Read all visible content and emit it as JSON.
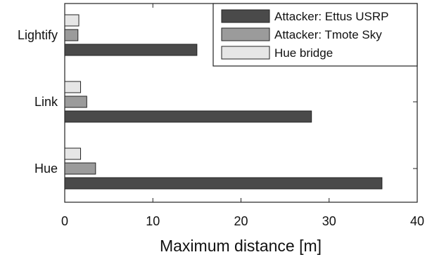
{
  "chart_data": {
    "type": "bar",
    "orientation": "horizontal",
    "categories": [
      "Lightify",
      "Link",
      "Hue"
    ],
    "series": [
      {
        "name": "Attacker: Ettus USRP",
        "values": [
          15,
          28,
          36
        ],
        "color": "#4a4a4a"
      },
      {
        "name": "Attacker: Tmote Sky",
        "values": [
          1.5,
          2.5,
          3.5
        ],
        "color": "#9b9b9b"
      },
      {
        "name": "Hue bridge",
        "values": [
          1.6,
          1.8,
          1.8
        ],
        "color": "#e6e6e6"
      }
    ],
    "xlabel": "Maximum distance [m]",
    "ylabel": "",
    "xlim": [
      0,
      40
    ],
    "xticks": [
      "0",
      "10",
      "20",
      "30",
      "40"
    ],
    "grid": false,
    "legend_position": "top-right"
  }
}
